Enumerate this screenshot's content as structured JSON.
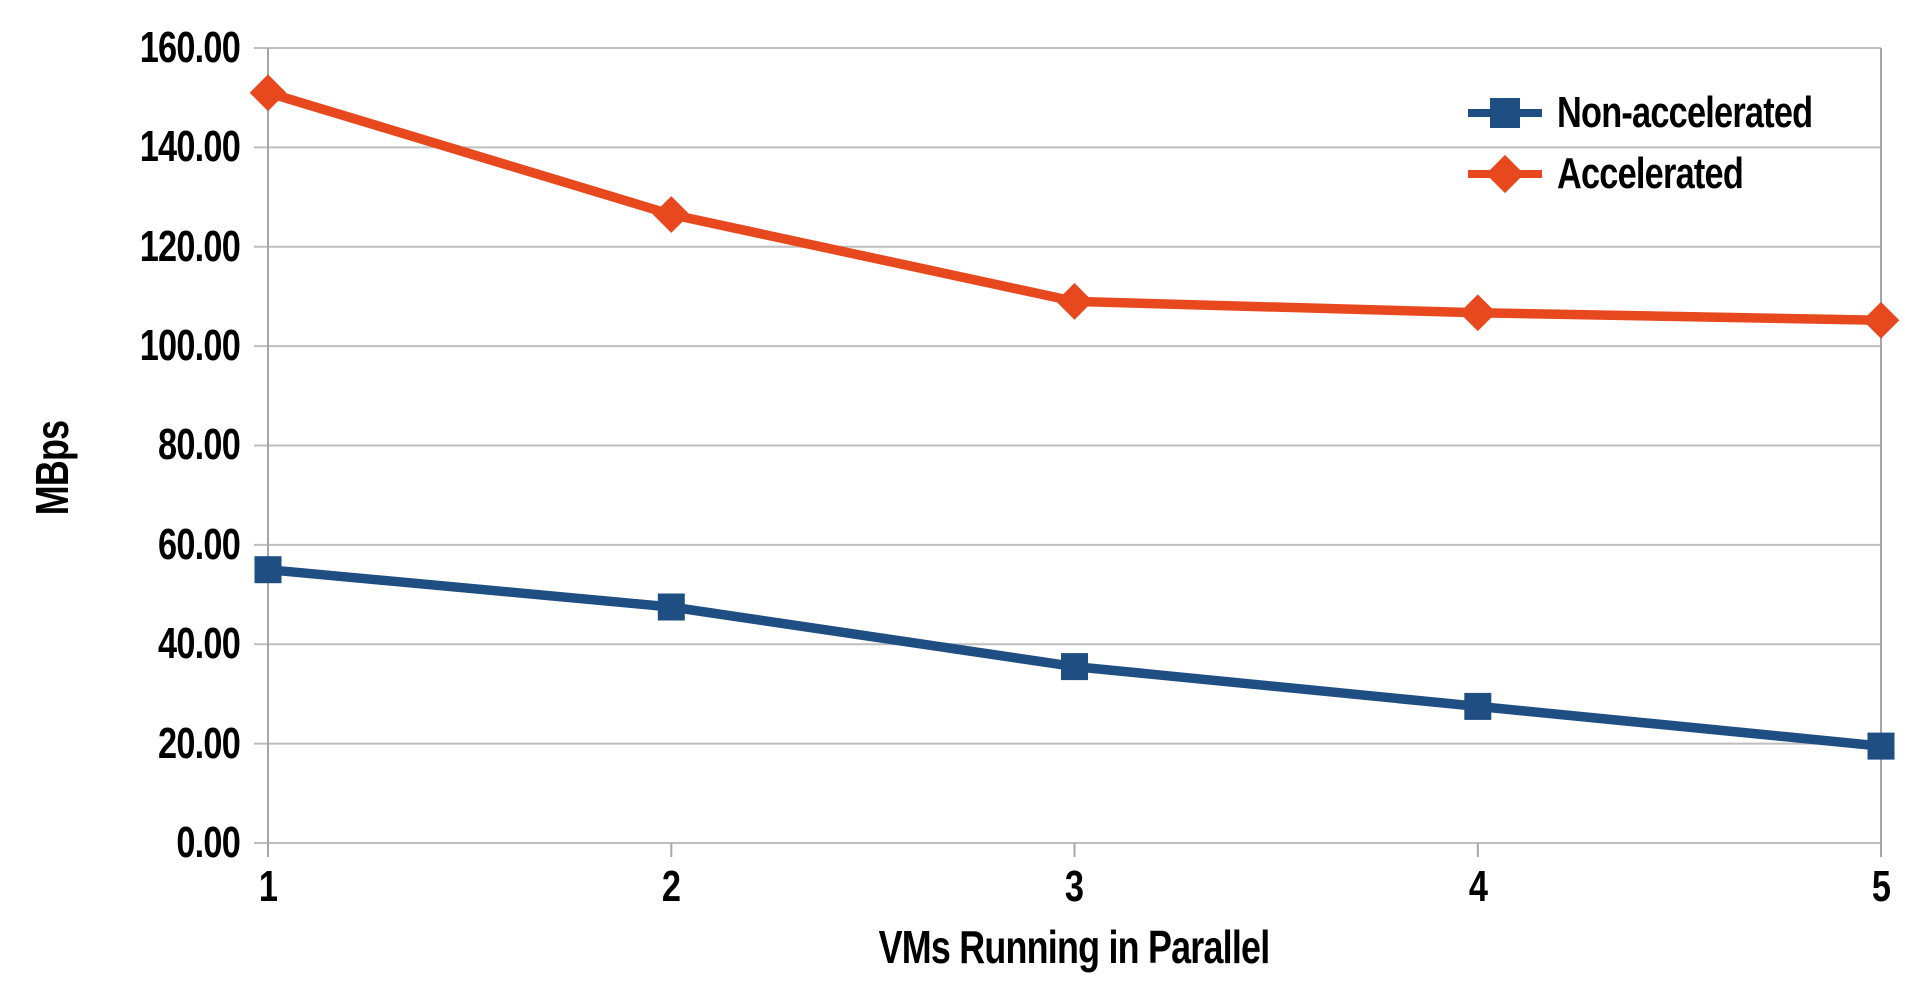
{
  "chart_data": {
    "type": "line",
    "title": "",
    "xlabel": "VMs Running in Parallel",
    "ylabel": "MBps",
    "x": [
      1,
      2,
      3,
      4,
      5
    ],
    "xtick_labels": [
      "1",
      "2",
      "3",
      "4",
      "5"
    ],
    "ytick_labels": [
      "160.00",
      "140.00",
      "120.00",
      "100.00",
      "80.00",
      "60.00",
      "40.00",
      "20.00",
      "0.00"
    ],
    "ylim": [
      0,
      160
    ],
    "ytick_step": 20,
    "grid": "horizontal-only",
    "legend_position": "top-right-inside",
    "series": [
      {
        "name": "Non-accelerated",
        "marker": "square",
        "color": "#1F4E82",
        "values": [
          55.0,
          47.5,
          35.5,
          27.5,
          19.5
        ]
      },
      {
        "name": "Accelerated",
        "marker": "diamond",
        "color": "#E8481E",
        "values": [
          151.0,
          126.5,
          109.0,
          106.7,
          105.2
        ]
      }
    ],
    "colors": {
      "gridline": "#BEBEBE",
      "axis": "#A6A6A6",
      "text": "#000000",
      "background": "#FFFFFF"
    }
  }
}
